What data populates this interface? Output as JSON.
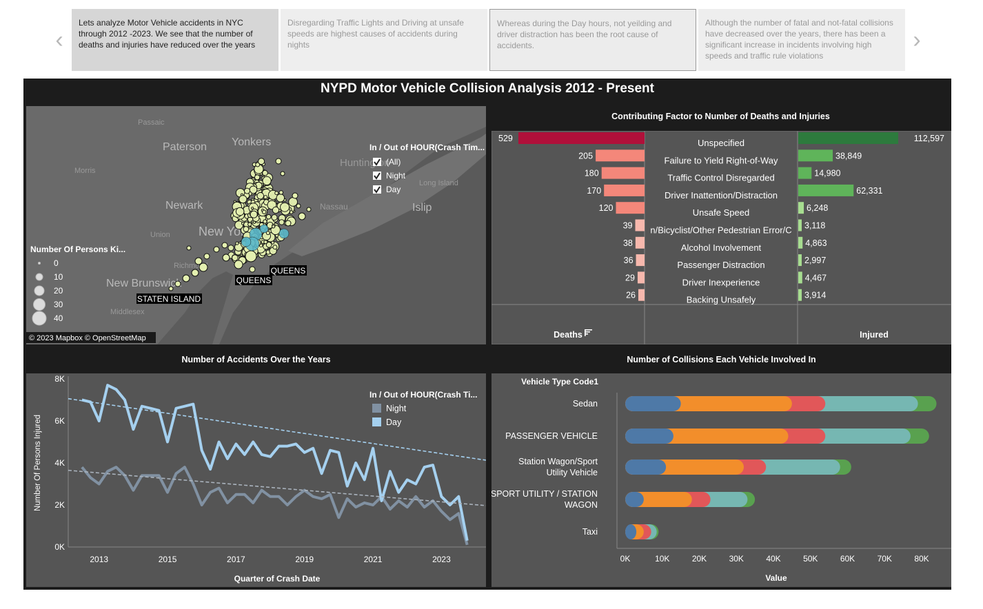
{
  "story": {
    "points": [
      "Lets analyze Motor Vehicle accidents in NYC through 2012 -2023. We see that the number of deaths and injuries have reduced over the years",
      "Disregarding Traffic Lights and Driving at unsafe speeds are highest causes of accidents during nights",
      "Whereas during the Day hours, not yeilding and driver distraction has been the root cause of accidents.",
      "Although the number of fatal and not-fatal collisions have decreased over the years, there has been a significant increase in incidents involving high speeds and traffic rule violations"
    ],
    "prev_arrow": "‹",
    "next_arrow": "›"
  },
  "dashboard": {
    "title": "NYPD Motor Vehicle Collision Analysis 2012 - Present"
  },
  "map": {
    "place_labels": [
      "Passaic",
      "Paterson",
      "Yonkers",
      "Morris",
      "Huntington",
      "Long Island",
      "Newark",
      "Nassau",
      "Islip",
      "New York",
      "Union",
      "Richmond",
      "New Brunswick",
      "Middlesex"
    ],
    "borough_labels": [
      "QUEENS",
      "QUEENS",
      "STATEN ISLAND"
    ],
    "attribution": "© 2023 Mapbox  © OpenStreetMap",
    "filter": {
      "title": "In / Out of HOUR(Crash Tim...",
      "options": [
        "(All)",
        "Night",
        "Day"
      ]
    },
    "size_legend": {
      "title": "Number Of Persons Ki...",
      "values": [
        "0",
        "10",
        "20",
        "30",
        "40"
      ]
    },
    "colors": {
      "land": "#6e6e6e",
      "water": "#4f4f4f",
      "point_fill": "#e4f0b0",
      "point_outline": "#0f0f0f",
      "day_points": "#59b7c9"
    }
  },
  "factors": {
    "title": "Contributing Factor to Number of Deaths and Injuries",
    "deaths_header": "Deaths",
    "injured_header": "Injured",
    "sort_icon": "sort-descending-icon",
    "colors": {
      "deaths_max": "#b0103a",
      "deaths_high": "#f4877a",
      "deaths_low": "#f7b8ad",
      "injured_max": "#2d7a3d",
      "injured_mid": "#5fb45a",
      "injured_low": "#a7dd90"
    }
  },
  "years_chart": {
    "title": "Number of Accidents Over the Years",
    "legend_title": "In / Out of HOUR(Crash Ti...",
    "colors": {
      "night": "#8191a2",
      "day": "#a5d0ef"
    }
  },
  "vehicles": {
    "title": "Number of Collisions Each Vehicle Involved In",
    "header": "Vehicle Type Code1",
    "colors": [
      "#4e79a7",
      "#f28e2b",
      "#e15759",
      "#76b7b2",
      "#59a14f"
    ]
  },
  "chart_data": [
    {
      "type": "bar",
      "title": "Contributing Factor to Number of Deaths and Injuries",
      "categories": [
        "Unspecified",
        "Failure to Yield Right-of-Way",
        "Traffic Control Disregarded",
        "Driver Inattention/Distraction",
        "Unsafe Speed",
        "Pedestrian/Bicyclist/Other Pedestrian Error/Confusion",
        "Alcohol Involvement",
        "Passenger Distraction",
        "Driver Inexperience",
        "Backing Unsafely"
      ],
      "category_labels": [
        "Unspecified",
        "Failure to Yield Right-of-Way",
        "Traffic Control Disregarded",
        "Driver Inattention/Distraction",
        "Unsafe Speed",
        "n/Bicyclist/Other Pedestrian Error/C",
        "Alcohol Involvement",
        "Passenger Distraction",
        "Driver Inexperience",
        "Backing Unsafely"
      ],
      "series": [
        {
          "name": "Deaths",
          "values": [
            529,
            205,
            180,
            170,
            120,
            39,
            38,
            36,
            29,
            26
          ],
          "labels": [
            "529",
            "205",
            "180",
            "170",
            "120",
            "39",
            "38",
            "36",
            "29",
            "26"
          ]
        },
        {
          "name": "Injured",
          "values": [
            112597,
            38849,
            14980,
            62331,
            6248,
            3118,
            4863,
            2997,
            4467,
            3914
          ],
          "labels": [
            "112,597",
            "38,849",
            "14,980",
            "62,331",
            "6,248",
            "3,118",
            "4,863",
            "2,997",
            "4,467",
            "3,914"
          ]
        }
      ]
    },
    {
      "type": "line",
      "title": "Number of Accidents Over the Years",
      "xlabel": "Quarter of Crash Date",
      "ylabel": "Number Of Persons Injured",
      "xlim": [
        2012.1,
        2024.3
      ],
      "ylim": [
        0,
        8000
      ],
      "x_ticks": [
        2013,
        2015,
        2017,
        2019,
        2021,
        2023
      ],
      "x_tick_labels": [
        "2013",
        "2015",
        "2017",
        "2019",
        "2021",
        "2023"
      ],
      "y_ticks": [
        0,
        2000,
        4000,
        6000,
        8000
      ],
      "y_tick_labels": [
        "0K",
        "2K",
        "4K",
        "6K",
        "8K"
      ],
      "x": [
        2012.5,
        2012.75,
        2013.0,
        2013.25,
        2013.5,
        2013.75,
        2014.0,
        2014.25,
        2014.5,
        2014.75,
        2015.0,
        2015.25,
        2015.5,
        2015.75,
        2016.0,
        2016.25,
        2016.5,
        2016.75,
        2017.0,
        2017.25,
        2017.5,
        2017.75,
        2018.0,
        2018.25,
        2018.5,
        2018.75,
        2019.0,
        2019.25,
        2019.5,
        2019.75,
        2020.0,
        2020.25,
        2020.5,
        2020.75,
        2021.0,
        2021.25,
        2021.5,
        2021.75,
        2022.0,
        2022.25,
        2022.5,
        2022.75,
        2023.0,
        2023.25,
        2023.5,
        2023.75
      ],
      "series": [
        {
          "name": "Night",
          "values": [
            3800,
            3300,
            3000,
            3600,
            3800,
            3400,
            2700,
            3400,
            3400,
            3400,
            2600,
            3500,
            3800,
            3000,
            2000,
            2600,
            2800,
            2100,
            2500,
            2500,
            2100,
            2700,
            2400,
            2400,
            2000,
            2400,
            2700,
            2400,
            2300,
            2500,
            1400,
            2300,
            1900,
            2100,
            2000,
            2400,
            1800,
            2200,
            1900,
            2400,
            1900,
            2200,
            1700,
            1300,
            1600,
            100
          ]
        },
        {
          "name": "Day",
          "values": [
            7000,
            6900,
            6000,
            7700,
            7500,
            7000,
            5600,
            6700,
            6600,
            6500,
            5000,
            6600,
            6700,
            6800,
            4600,
            3700,
            5000,
            4200,
            4900,
            4400,
            5000,
            4400,
            4300,
            4800,
            4800,
            4900,
            4500,
            4700,
            3500,
            4600,
            4500,
            2900,
            4000,
            3200,
            4700,
            2200,
            3600,
            2600,
            3200,
            3000,
            3800,
            3900,
            2400,
            2000,
            2400,
            300
          ]
        },
        {
          "name": "Day trend",
          "values": [
            7060,
            4130
          ],
          "x": [
            2012.1,
            2024.3
          ]
        },
        {
          "name": "Night trend",
          "values": [
            3650,
            1970
          ],
          "x": [
            2012.1,
            2024.3
          ]
        }
      ]
    },
    {
      "type": "bar",
      "stacked": true,
      "orientation": "horizontal",
      "title": "Number of Collisions Each Vehicle Involved In",
      "categories": [
        "Sedan",
        "PASSENGER VEHICLE",
        "Station Wagon/Sport Utility Vehicle",
        "SPORT UTILITY / STATION WAGON",
        "Taxi"
      ],
      "category_labels": [
        [
          "Sedan"
        ],
        [
          "PASSENGER VEHICLE"
        ],
        [
          "Station Wagon/Sport",
          "Utility Vehicle"
        ],
        [
          "SPORT UTILITY / STATION",
          "WAGON"
        ],
        [
          "Taxi"
        ]
      ],
      "xlabel": "Value",
      "xlim": [
        0,
        82000
      ],
      "x_ticks": [
        0,
        10000,
        20000,
        30000,
        40000,
        50000,
        60000,
        70000,
        80000
      ],
      "x_tick_labels": [
        "0K",
        "10K",
        "20K",
        "30K",
        "40K",
        "50K",
        "60K",
        "70K",
        "80K"
      ],
      "series": [
        {
          "values": [
            15000,
            13000,
            11000,
            5000,
            3000
          ]
        },
        {
          "values": [
            30000,
            31000,
            21000,
            13000,
            2000
          ]
        },
        {
          "values": [
            9000,
            10000,
            6000,
            5000,
            2000
          ]
        },
        {
          "values": [
            25000,
            23000,
            20000,
            10000,
            1500
          ]
        },
        {
          "values": [
            5000,
            5000,
            3000,
            2000,
            500
          ]
        }
      ]
    }
  ]
}
